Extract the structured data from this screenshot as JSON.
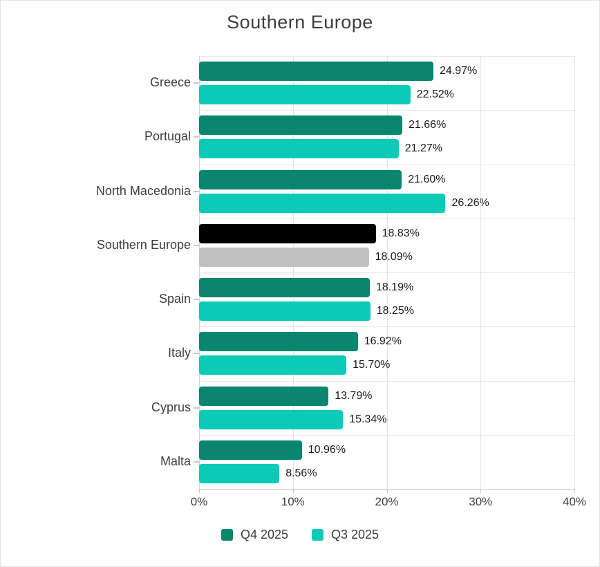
{
  "title": "Southern Europe",
  "chart_data": {
    "type": "bar",
    "orientation": "horizontal",
    "title": "Southern Europe",
    "xlabel": "",
    "ylabel": "",
    "xlim": [
      0,
      40
    ],
    "x_tick_labels": [
      "0%",
      "10%",
      "20%",
      "30%",
      "40%"
    ],
    "x_tick_values": [
      0,
      10,
      20,
      30,
      40
    ],
    "grid": true,
    "legend_position": "bottom",
    "value_suffix": "%",
    "categories": [
      "Greece",
      "Portugal",
      "North Macedonia",
      "Southern Europe",
      "Spain",
      "Italy",
      "Cyprus",
      "Malta"
    ],
    "series": [
      {
        "name": "Q4 2025",
        "color": "#0a856e",
        "values": [
          24.97,
          21.66,
          21.6,
          18.83,
          18.19,
          16.92,
          13.79,
          10.96
        ]
      },
      {
        "name": "Q3 2025",
        "color": "#0ccbb6",
        "values": [
          22.52,
          21.27,
          26.26,
          18.09,
          18.25,
          15.7,
          15.34,
          8.56
        ]
      }
    ],
    "data_labels": {
      "Q4 2025": [
        "24.97%",
        "21.66%",
        "21.60%",
        "18.83%",
        "18.19%",
        "16.92%",
        "13.79%",
        "10.96%"
      ],
      "Q3 2025": [
        "22.52%",
        "21.27%",
        "26.26%",
        "18.09%",
        "18.25%",
        "15.70%",
        "15.34%",
        "8.56%"
      ]
    },
    "highlight_category": "Southern Europe",
    "highlight_colors": [
      "#000000",
      "#c1c1c1"
    ]
  },
  "colors": {
    "q4_accent": "#0a856e",
    "q3_accent": "#0ccbb6",
    "highlight_black": "#000000",
    "highlight_gray": "#c1c1c1",
    "text": "#3e3e3e",
    "value_text": "#1a1a1a",
    "gridline": "#e4e4e4"
  }
}
